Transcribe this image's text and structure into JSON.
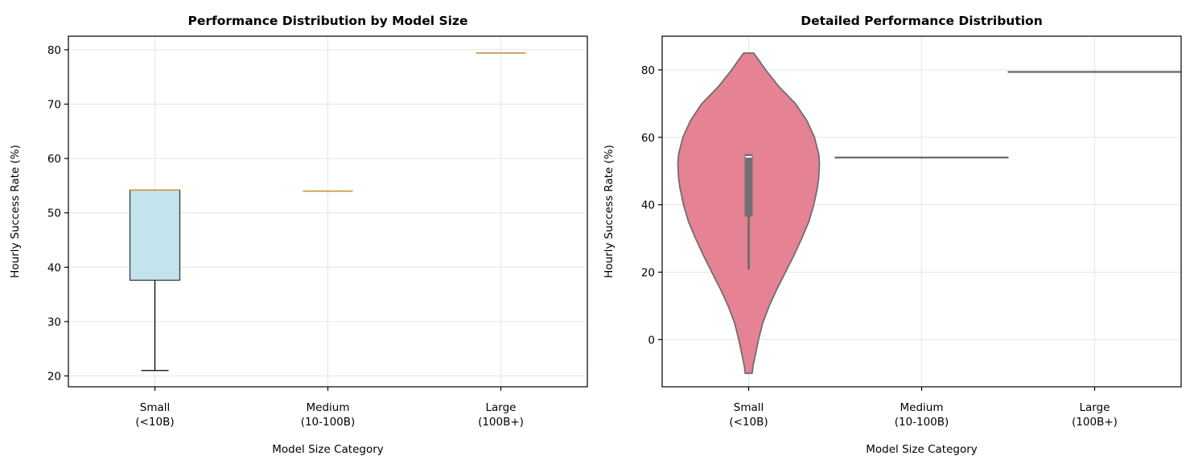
{
  "chart_data": [
    {
      "type": "box",
      "title": "Performance Distribution by Model Size",
      "xlabel": "Model Size Category",
      "ylabel": "Hourly Success Rate (%)",
      "ylim": [
        18,
        82.5
      ],
      "yticks": [
        20,
        30,
        40,
        50,
        60,
        70,
        80
      ],
      "grid": true,
      "categories": [
        "Small\n(<10B)",
        "Medium\n(10-100B)",
        "Large\n(100B+)"
      ],
      "boxes": [
        {
          "category": "Small\n(<10B)",
          "whisker_low": 21.0,
          "q1": 37.6,
          "median": 54.2,
          "q3": 54.2,
          "whisker_high": 54.2
        },
        {
          "category": "Medium\n(10-100B)",
          "whisker_low": 54.0,
          "q1": 54.0,
          "median": 54.0,
          "q3": 54.0,
          "whisker_high": 54.0
        },
        {
          "category": "Large\n(100B+)",
          "whisker_low": 79.4,
          "q1": 79.4,
          "median": 79.4,
          "q3": 79.4,
          "whisker_high": 79.4
        }
      ],
      "colors": {
        "box_fill": "#c4e3ec",
        "median": "#c6943c",
        "edge": "#000000"
      }
    },
    {
      "type": "violin",
      "title": "Detailed Performance Distribution",
      "xlabel": "Model Size Category",
      "ylabel": "Hourly Success Rate (%)",
      "ylim": [
        -14,
        90
      ],
      "yticks": [
        0,
        20,
        40,
        60,
        80
      ],
      "grid": true,
      "categories": [
        "Small\n(<10B)",
        "Medium\n(10-100B)",
        "Large\n(100B+)"
      ],
      "violins": [
        {
          "category": "Small\n(<10B)",
          "min": -10,
          "max": 85,
          "density": [
            [
              85,
              0.07
            ],
            [
              83,
              0.14
            ],
            [
              80,
              0.24
            ],
            [
              75,
              0.43
            ],
            [
              70,
              0.66
            ],
            [
              65,
              0.82
            ],
            [
              60,
              0.93
            ],
            [
              55,
              0.99
            ],
            [
              52,
              1.0
            ],
            [
              48,
              0.99
            ],
            [
              45,
              0.97
            ],
            [
              40,
              0.92
            ],
            [
              35,
              0.85
            ],
            [
              30,
              0.75
            ],
            [
              25,
              0.64
            ],
            [
              20,
              0.52
            ],
            [
              15,
              0.4
            ],
            [
              10,
              0.29
            ],
            [
              5,
              0.2
            ],
            [
              0,
              0.14
            ],
            [
              -5,
              0.09
            ],
            [
              -8,
              0.06
            ],
            [
              -10,
              0.05
            ]
          ],
          "whisker_low": 20.8,
          "q1": 36.5,
          "median": 54.2,
          "q3": 55.0,
          "whisker_high": 55.0
        },
        {
          "category": "Medium\n(10-100B)",
          "value": 54.0
        },
        {
          "category": "Large\n(100B+)",
          "value": 79.4
        }
      ],
      "colors": {
        "violin_fill": "#e58294",
        "edge": "#6e6e6e"
      }
    }
  ]
}
